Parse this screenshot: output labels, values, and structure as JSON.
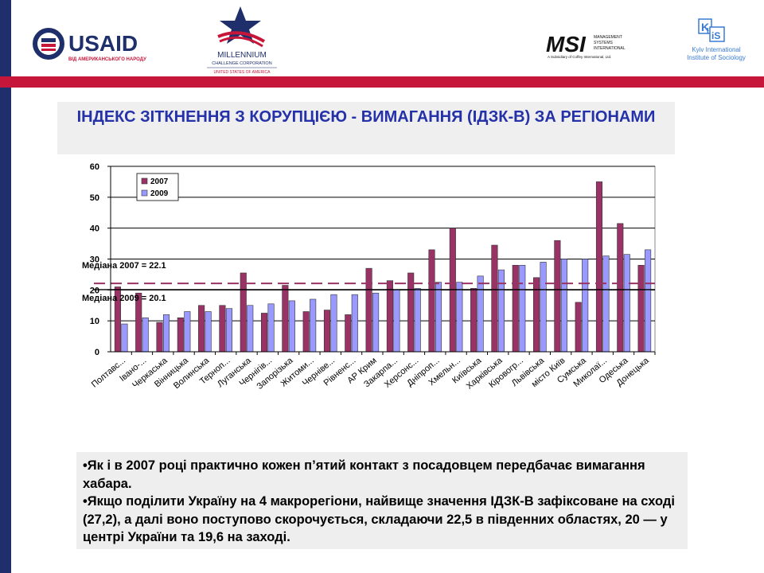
{
  "slide": {
    "title": "ІНДЕКС ЗІТКНЕННЯ З  КОРУПЦІЄЮ  - ВИМАГАННЯ (ІДЗК-В) ЗА РЕГІОНАМИ",
    "bullets": [
      "•Як і в 2007 році практично кожен п’ятий контакт з посадовцем передбачає вимагання хабара.",
      "•Якщо поділити Україну на 4 макрорегіони, найвище значення ІДЗК-В зафіксоване на сході (27,2), а далі воно поступово скорочується, складаючи 22,5 в південних областях, 20 — у центрі України та 19,6 на заході."
    ],
    "colors": {
      "left_bar": "#1f2f6b",
      "red_band": "#c6173a",
      "title_text": "#2431a8"
    }
  },
  "logos": {
    "usaid": {
      "name": "USAID",
      "subtitle": "ВІД АМЕРИКАНСЬКОГО НАРОДУ"
    },
    "mcc": {
      "line1": "MILLENNIUM",
      "line2": "CHALLENGE CORPORATION",
      "line3": "UNITED STATES OF AMERICA"
    },
    "msi": {
      "mark": "MSI",
      "line1": "MANAGEMENT",
      "line2": "SYSTEMS",
      "line3": "INTERNATIONAL",
      "tagline": "A Subsidiary of Coffey International, Ltd."
    },
    "kiis": {
      "mark_k": "K",
      "mark_i": "I",
      "mark_is": "iS",
      "line1": "Kyiv International",
      "line2": "Institute of Sociology"
    }
  },
  "chart_data": {
    "type": "bar",
    "categories": [
      "Полтавс...",
      "Івано-...",
      "Черкаська",
      "Вінницька",
      "Волинська",
      "Терноп...",
      "Луганська",
      "Чернігів...",
      "Запорізька",
      "Житоми...",
      "Черніве...",
      "Рівненс...",
      "АР Крим",
      "Закарпа...",
      "Херсонс...",
      "Дніпроп...",
      "Хмельн...",
      "Київська",
      "Харківська",
      "Кіровогр...",
      "Львівська",
      "місто Київ",
      "Сумська",
      "Миколаї...",
      "Одеська",
      "Донецька"
    ],
    "series": [
      {
        "name": "2007",
        "color": "#993366",
        "values": [
          21,
          19,
          9.5,
          11,
          15,
          15,
          25.5,
          12.5,
          21.5,
          13,
          13.5,
          12,
          27,
          23,
          25.5,
          33,
          40,
          20.5,
          34.5,
          28,
          24,
          36,
          16,
          55,
          41.5,
          28
        ]
      },
      {
        "name": "2009",
        "color": "#9999ff",
        "values": [
          9,
          11,
          12,
          13,
          13,
          14,
          15,
          15.5,
          16.5,
          17,
          18.5,
          18.5,
          19,
          20,
          20.5,
          22.5,
          22.5,
          24.5,
          26.5,
          28,
          29,
          30,
          30,
          31,
          31.5,
          33
        ]
      }
    ],
    "ylim": [
      0,
      60
    ],
    "yticks": [
      0,
      10,
      20,
      30,
      40,
      50,
      60
    ],
    "medians": [
      {
        "label": "Медіана 2007 = 22.1",
        "value": 22.1,
        "color": "#993366",
        "style": "dashed"
      },
      {
        "label": "Медіана 2009 = 20.1",
        "value": 20.1,
        "color": "#000000",
        "style": "solid"
      }
    ],
    "legend": "top-left",
    "grid": true,
    "title": "",
    "xlabel": "",
    "ylabel": ""
  }
}
